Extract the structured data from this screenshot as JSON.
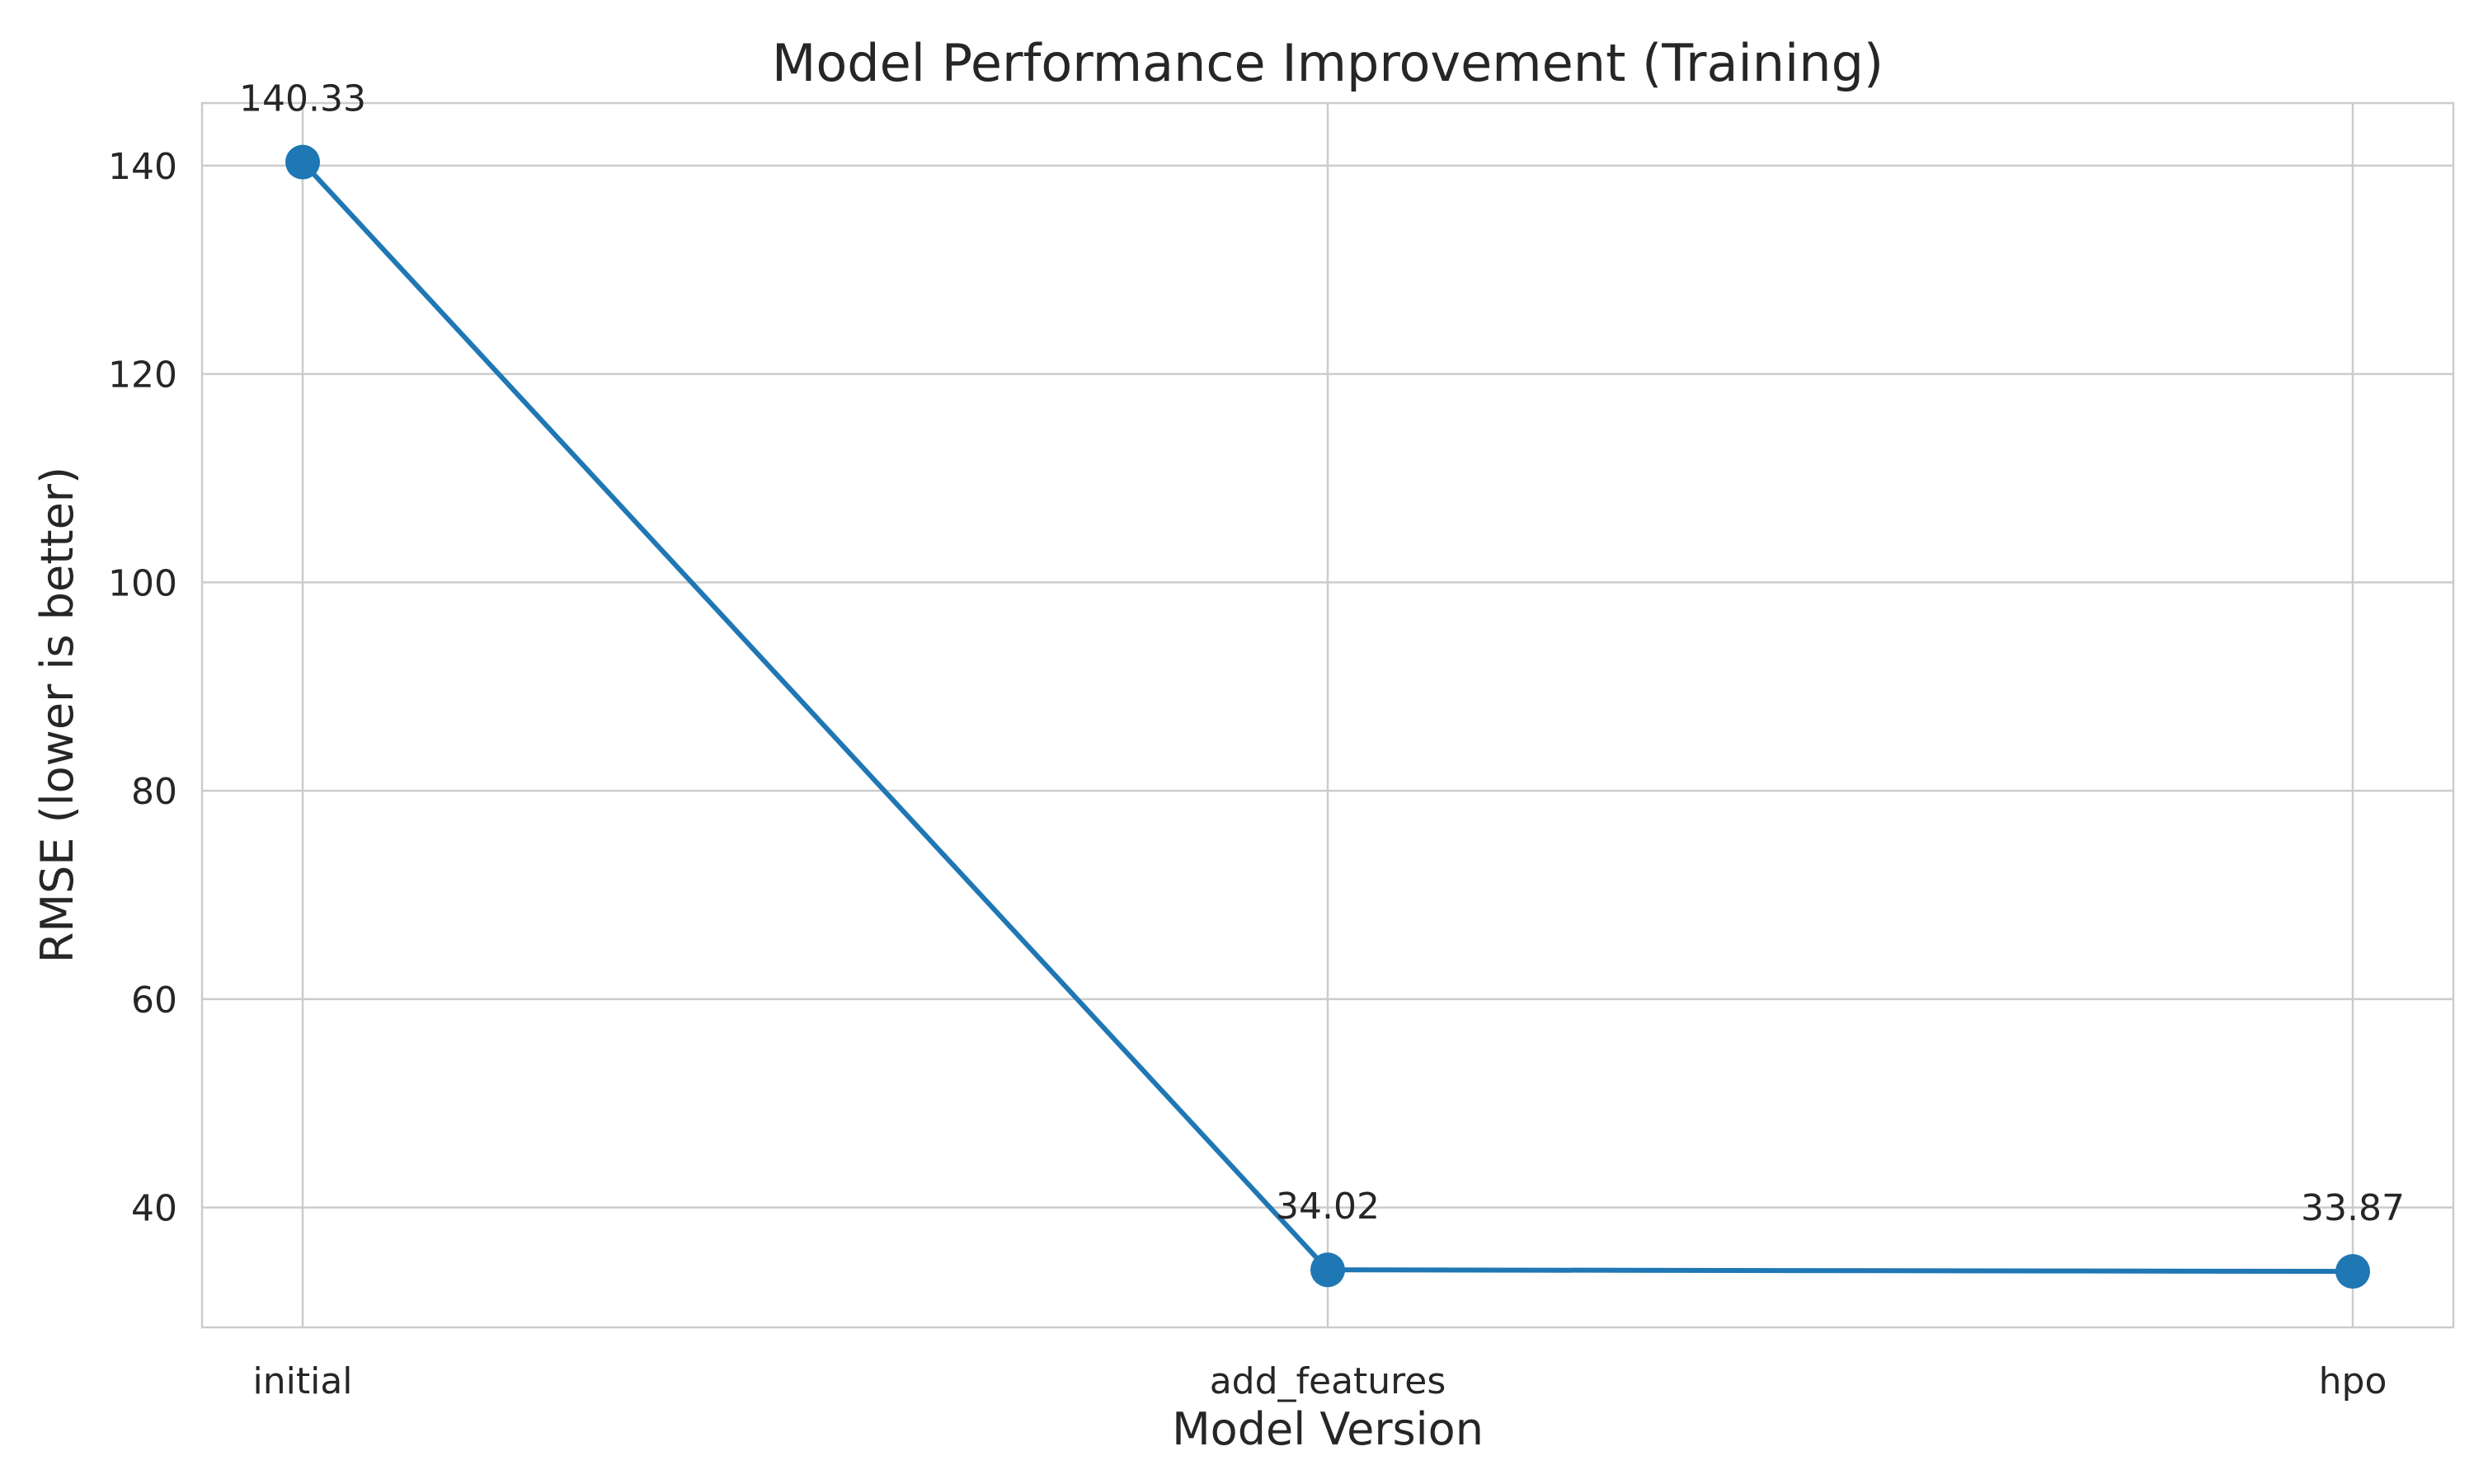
{
  "chart_data": {
    "type": "line",
    "title": "Model Performance Improvement (Training)",
    "xlabel": "Model Version",
    "ylabel": "RMSE (lower is better)",
    "categories": [
      "initial",
      "add_features",
      "hpo"
    ],
    "series": [
      {
        "values": [
          140.33,
          34.02,
          33.87
        ],
        "data_labels": [
          "140.33",
          "34.02",
          "33.87"
        ],
        "color": "#1f77b4",
        "marker": "circle"
      }
    ],
    "ylim": [
      28.5,
      146
    ],
    "yticks": [
      40,
      60,
      80,
      100,
      120,
      140
    ],
    "grid": true,
    "legend": "none"
  }
}
